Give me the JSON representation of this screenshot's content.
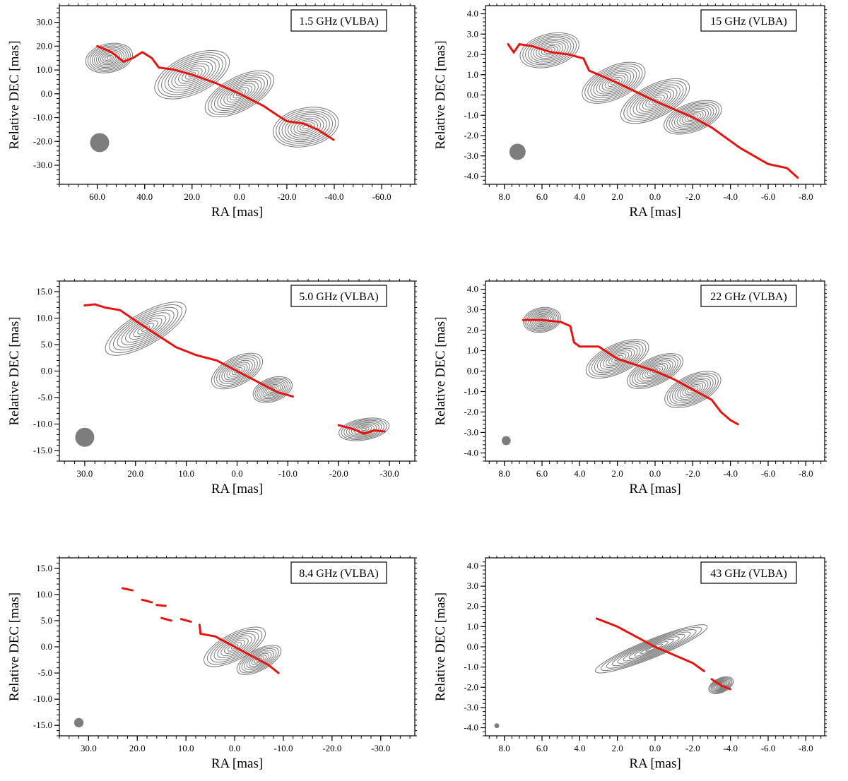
{
  "figure": {
    "description_label": ""
  },
  "chart_data": [
    {
      "type": "scatter",
      "title": "1.5 GHz (VLBA)",
      "xlabel": "RA [mas]",
      "ylabel": "Relative DEC [mas]",
      "xlim": [
        76,
        -74
      ],
      "ylim": [
        -38,
        37
      ],
      "xticks": [
        60,
        40,
        20,
        0,
        -20,
        -40,
        -60
      ],
      "yticks": [
        30,
        20,
        10,
        0,
        -10,
        -20,
        -30
      ],
      "beam": {
        "x": 59,
        "y": -20.5,
        "r": 4
      },
      "ridge": [
        [
          60,
          20
        ],
        [
          54,
          17.5
        ],
        [
          49,
          13.5
        ],
        [
          45,
          15
        ],
        [
          41,
          17.5
        ],
        [
          37,
          15
        ],
        [
          34,
          11
        ],
        [
          28,
          10.2
        ],
        [
          20,
          8
        ],
        [
          10,
          4.5
        ],
        [
          0,
          0
        ],
        [
          -10,
          -5
        ],
        [
          -16,
          -9
        ],
        [
          -20,
          -11.5
        ],
        [
          -27,
          -12.5
        ],
        [
          -33,
          -15
        ],
        [
          -40,
          -19.5
        ]
      ],
      "contour_levels": 11,
      "contour_core": [
        [
          0,
          0,
          16,
          7,
          -28
        ],
        [
          -28,
          -14,
          14,
          8,
          -12
        ],
        [
          20,
          8,
          17,
          8,
          -25
        ],
        [
          55,
          15,
          10,
          6,
          -12
        ]
      ]
    },
    {
      "type": "scatter",
      "title": "15 GHz (VLBA)",
      "xlabel": "RA [mas]",
      "ylabel": "Relative DEC [mas]",
      "xlim": [
        9,
        -9
      ],
      "ylim": [
        -4.4,
        4.4
      ],
      "xticks": [
        8,
        6,
        4,
        2,
        0,
        -2,
        -4,
        -6,
        -8
      ],
      "yticks": [
        4,
        3,
        2,
        1,
        0,
        -1,
        -2,
        -3,
        -4
      ],
      "beam": {
        "x": 7.3,
        "y": -2.8,
        "r": 0.4
      },
      "ridge": [
        [
          7.8,
          2.5
        ],
        [
          7.5,
          2.1
        ],
        [
          7.2,
          2.5
        ],
        [
          6.5,
          2.4
        ],
        [
          5.5,
          2.1
        ],
        [
          4.6,
          2.0
        ],
        [
          3.8,
          1.8
        ],
        [
          3.5,
          1.2
        ],
        [
          2,
          0.6
        ],
        [
          0,
          -0.3
        ],
        [
          -1,
          -0.7
        ],
        [
          -2,
          -1.1
        ],
        [
          -3,
          -1.6
        ],
        [
          -4.5,
          -2.6
        ],
        [
          -6,
          -3.4
        ],
        [
          -7,
          -3.6
        ],
        [
          -7.6,
          -4.1
        ]
      ],
      "contour_levels": 11,
      "contour_core": [
        [
          0,
          -0.3,
          2.0,
          0.8,
          -27
        ],
        [
          -2,
          -1.1,
          1.6,
          0.7,
          -20
        ],
        [
          5.6,
          2.2,
          1.6,
          0.8,
          -15
        ],
        [
          2.2,
          0.6,
          1.8,
          0.8,
          -25
        ]
      ]
    },
    {
      "type": "scatter",
      "title": "5.0 GHz (VLBA)",
      "xlabel": "RA [mas]",
      "ylabel": "Relative DEC [mas]",
      "xlim": [
        35,
        -35
      ],
      "ylim": [
        -17,
        17
      ],
      "xticks": [
        30,
        20,
        10,
        0,
        -10,
        -20,
        -30
      ],
      "yticks": [
        15,
        10,
        5,
        0,
        -5,
        -10,
        -15
      ],
      "beam": {
        "x": 30,
        "y": -12.5,
        "r": 1.8
      },
      "ridge": [
        [
          30,
          12.4
        ],
        [
          28,
          12.6
        ],
        [
          26,
          12
        ],
        [
          23,
          11.5
        ],
        [
          20,
          9.5
        ],
        [
          16,
          7
        ],
        [
          12,
          4.5
        ],
        [
          8,
          3
        ],
        [
          4,
          2
        ],
        [
          0,
          0
        ],
        [
          -4,
          -2
        ],
        [
          -8,
          -4
        ],
        [
          -11,
          -4.8
        ]
      ],
      "ridge2": [
        [
          -20,
          -10.2
        ],
        [
          -23,
          -11
        ],
        [
          -25,
          -11.8
        ],
        [
          -27,
          -11.2
        ],
        [
          -29,
          -11.4
        ]
      ],
      "contour_levels": 10,
      "contour_core": [
        [
          0,
          0,
          5.5,
          2.6,
          -28
        ],
        [
          -7,
          -3.5,
          4,
          2.2,
          -20
        ],
        [
          18,
          8,
          9,
          3,
          -30
        ],
        [
          -25,
          -11,
          5,
          2,
          -10
        ]
      ]
    },
    {
      "type": "scatter",
      "title": "22 GHz (VLBA)",
      "xlabel": "RA [mas]",
      "ylabel": "Relative DEC [mas]",
      "xlim": [
        9,
        -9
      ],
      "ylim": [
        -4.4,
        4.4
      ],
      "xticks": [
        8,
        6,
        4,
        2,
        0,
        -2,
        -4,
        -6,
        -8
      ],
      "yticks": [
        4,
        3,
        2,
        1,
        0,
        -1,
        -2,
        -3,
        -4
      ],
      "beam": {
        "x": 7.9,
        "y": -3.4,
        "r": 0.22
      },
      "ridge": [
        [
          7,
          2.5
        ],
        [
          6,
          2.5
        ],
        [
          5,
          2.4
        ],
        [
          4.5,
          2.2
        ],
        [
          4.3,
          1.4
        ],
        [
          4,
          1.2
        ],
        [
          3,
          1.2
        ],
        [
          2,
          0.6
        ],
        [
          0,
          0
        ],
        [
          -1,
          -0.4
        ],
        [
          -2,
          -0.9
        ],
        [
          -3,
          -1.4
        ],
        [
          -3.5,
          -2.0
        ],
        [
          -4,
          -2.4
        ],
        [
          -4.4,
          -2.6
        ]
      ],
      "contour_levels": 11,
      "contour_core": [
        [
          0,
          0,
          1.6,
          0.65,
          -25
        ],
        [
          -2,
          -0.9,
          1.6,
          0.7,
          -25
        ],
        [
          2,
          0.6,
          1.8,
          0.7,
          -25
        ],
        [
          6,
          2.5,
          1.0,
          0.6,
          -10
        ]
      ]
    },
    {
      "type": "scatter",
      "title": "8.4 GHz (VLBA)",
      "xlabel": "RA [mas]",
      "ylabel": "Relative DEC [mas]",
      "xlim": [
        36,
        -37
      ],
      "ylim": [
        -17,
        17
      ],
      "xticks": [
        30,
        20,
        10,
        0,
        -10,
        -20,
        -30
      ],
      "yticks": [
        15,
        10,
        5,
        0,
        -5,
        -10,
        -15
      ],
      "beam": {
        "x": 32,
        "y": -14.5,
        "r": 0.9
      },
      "ridge": [
        [
          7.2,
          4.2
        ],
        [
          7,
          2.5
        ],
        [
          4,
          2
        ],
        [
          0,
          0
        ],
        [
          -4,
          -2
        ],
        [
          -7,
          -3.5
        ],
        [
          -9,
          -5
        ]
      ],
      "ridge_segments": [
        [
          [
            23,
            11.2
          ],
          [
            21,
            10.8
          ]
        ],
        [
          [
            19,
            9
          ],
          [
            17,
            8.5
          ]
        ],
        [
          [
            16,
            8
          ],
          [
            14,
            7.8
          ]
        ],
        [
          [
            15,
            5.5
          ],
          [
            13,
            5
          ]
        ],
        [
          [
            11,
            5.3
          ],
          [
            9,
            4.8
          ]
        ]
      ],
      "contour_levels": 9,
      "contour_core": [
        [
          0,
          0,
          7,
          2.5,
          -28
        ],
        [
          -5,
          -2.5,
          5,
          2,
          -28
        ]
      ]
    },
    {
      "type": "scatter",
      "title": "43 GHz (VLBA)",
      "xlabel": "RA [mas]",
      "ylabel": "Relative DEC [mas]",
      "xlim": [
        9,
        -9
      ],
      "ylim": [
        -4.4,
        4.4
      ],
      "xticks": [
        8,
        6,
        4,
        2,
        0,
        -2,
        -4,
        -6,
        -8
      ],
      "yticks": [
        4,
        3,
        2,
        1,
        0,
        -1,
        -2,
        -3,
        -4
      ],
      "beam": {
        "x": 8.4,
        "y": -3.9,
        "r": 0.12
      },
      "ridge": [
        [
          3.1,
          1.4
        ],
        [
          2,
          1
        ],
        [
          1,
          0.5
        ],
        [
          0,
          0
        ],
        [
          -1,
          -0.4
        ],
        [
          -2,
          -0.8
        ],
        [
          -2.6,
          -1.2
        ]
      ],
      "ridge_segments": [
        [
          [
            -3,
            -1.6
          ],
          [
            -3.5,
            -1.9
          ],
          [
            -4,
            -2.1
          ]
        ]
      ],
      "contour_levels": 10,
      "contour_core": [
        [
          0.2,
          -0.1,
          3.2,
          0.45,
          -22
        ],
        [
          -3.5,
          -1.9,
          0.7,
          0.35,
          -25
        ]
      ]
    }
  ]
}
